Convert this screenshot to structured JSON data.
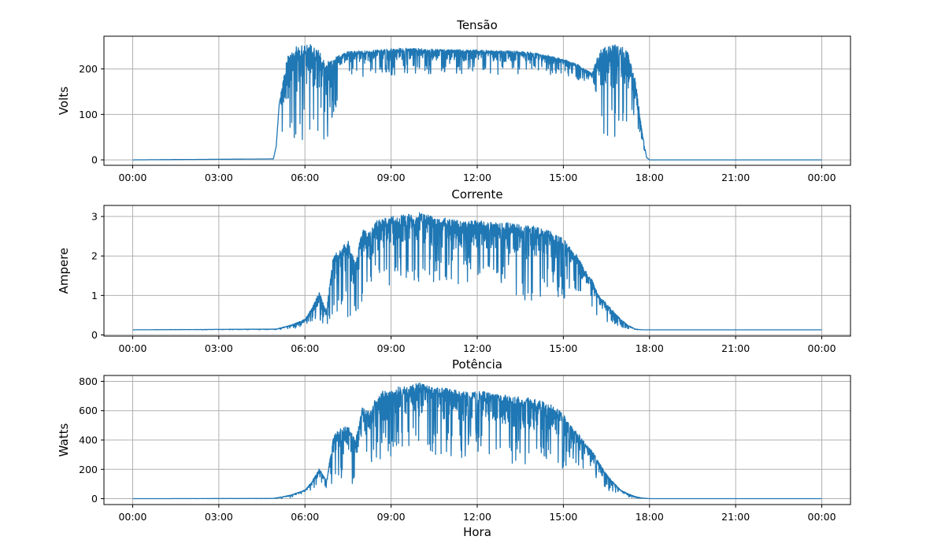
{
  "chart_data": [
    {
      "type": "line",
      "title": "Tensão",
      "ylabel": "Volts",
      "xlabel": "",
      "grid": true,
      "xlim_hours": [
        -1,
        25
      ],
      "ylim": [
        -12,
        272
      ],
      "x_ticks": [
        {
          "hour": 0,
          "label": "00:00"
        },
        {
          "hour": 3,
          "label": "03:00"
        },
        {
          "hour": 6,
          "label": "06:00"
        },
        {
          "hour": 9,
          "label": "09:00"
        },
        {
          "hour": 12,
          "label": "12:00"
        },
        {
          "hour": 15,
          "label": "15:00"
        },
        {
          "hour": 18,
          "label": "18:00"
        },
        {
          "hour": 21,
          "label": "21:00"
        },
        {
          "hour": 24,
          "label": "00:00"
        }
      ],
      "y_ticks": [
        0,
        100,
        200
      ],
      "color": "#1f77b4",
      "series": [
        {
          "x": [
            "00:00",
            "04:54",
            "05:00",
            "05:06",
            "05:12",
            "05:18",
            "05:24",
            "05:30",
            "05:45",
            "06:00",
            "06:15",
            "06:30",
            "06:45",
            "07:00",
            "07:30",
            "08:00",
            "08:30",
            "09:00",
            "09:30",
            "10:00",
            "10:30",
            "11:00",
            "11:30",
            "12:00",
            "12:30",
            "13:00",
            "13:30",
            "14:00",
            "14:30",
            "15:00",
            "15:30",
            "16:00",
            "16:15",
            "16:30",
            "16:45",
            "17:00",
            "17:15",
            "17:30",
            "17:45",
            "17:54",
            "18:00",
            "24:00"
          ],
          "y": [
            0,
            2,
            30,
            120,
            165,
            200,
            230,
            245,
            250,
            252,
            255,
            240,
            215,
            225,
            238,
            240,
            242,
            245,
            246,
            245,
            244,
            243,
            242,
            242,
            241,
            240,
            239,
            236,
            230,
            222,
            210,
            190,
            240,
            250,
            255,
            250,
            240,
            180,
            60,
            5,
            0,
            0
          ],
          "y_low": [
            0,
            2,
            30,
            120,
            40,
            20,
            15,
            25,
            30,
            35,
            30,
            40,
            30,
            100,
            190,
            175,
            190,
            185,
            190,
            190,
            185,
            195,
            185,
            195,
            190,
            185,
            190,
            200,
            185,
            190,
            170,
            180,
            70,
            50,
            40,
            40,
            60,
            60,
            30,
            5,
            0,
            0
          ]
        }
      ]
    },
    {
      "type": "line",
      "title": "Corrente",
      "ylabel": "Ampere",
      "xlabel": "",
      "grid": true,
      "xlim_hours": [
        -1,
        25
      ],
      "ylim": [
        -0.03,
        3.28
      ],
      "x_ticks": [
        {
          "hour": 0,
          "label": "00:00"
        },
        {
          "hour": 3,
          "label": "03:00"
        },
        {
          "hour": 6,
          "label": "06:00"
        },
        {
          "hour": 9,
          "label": "09:00"
        },
        {
          "hour": 12,
          "label": "12:00"
        },
        {
          "hour": 15,
          "label": "15:00"
        },
        {
          "hour": 18,
          "label": "18:00"
        },
        {
          "hour": 21,
          "label": "21:00"
        },
        {
          "hour": 24,
          "label": "00:00"
        }
      ],
      "y_ticks": [
        0,
        1,
        2,
        3
      ],
      "color": "#1f77b4",
      "series": [
        {
          "x": [
            "00:00",
            "05:00",
            "05:30",
            "06:00",
            "06:15",
            "06:30",
            "06:45",
            "07:00",
            "07:15",
            "07:30",
            "07:45",
            "08:00",
            "08:15",
            "08:30",
            "08:45",
            "09:00",
            "09:30",
            "10:00",
            "10:30",
            "11:00",
            "11:30",
            "12:00",
            "12:30",
            "13:00",
            "13:30",
            "14:00",
            "14:30",
            "15:00",
            "15:15",
            "15:30",
            "15:45",
            "16:00",
            "16:15",
            "16:30",
            "16:45",
            "17:00",
            "17:15",
            "17:30",
            "17:45",
            "18:00",
            "24:00"
          ],
          "y": [
            0.13,
            0.15,
            0.25,
            0.4,
            0.7,
            1.1,
            0.6,
            2.1,
            2.2,
            2.4,
            1.8,
            2.7,
            2.6,
            2.9,
            2.95,
            3.0,
            3.05,
            3.1,
            3.0,
            2.95,
            2.9,
            2.9,
            2.85,
            2.85,
            2.8,
            2.75,
            2.65,
            2.45,
            2.2,
            2.0,
            1.65,
            1.4,
            1.0,
            0.8,
            0.6,
            0.4,
            0.25,
            0.15,
            0.13,
            0.13,
            0.13
          ],
          "y_low": [
            0.13,
            0.13,
            0.15,
            0.2,
            0.3,
            0.35,
            0.25,
            0.5,
            0.4,
            0.3,
            0.5,
            0.7,
            1.0,
            1.2,
            1.3,
            1.25,
            1.4,
            1.3,
            1.35,
            1.2,
            1.3,
            1.4,
            1.3,
            1.2,
            0.8,
            0.9,
            1.1,
            0.8,
            1.2,
            1.0,
            0.9,
            0.7,
            0.4,
            0.3,
            0.25,
            0.2,
            0.15,
            0.13,
            0.13,
            0.13,
            0.13
          ]
        }
      ]
    },
    {
      "type": "line",
      "title": "Potência",
      "ylabel": "Watts",
      "xlabel": "Hora",
      "grid": true,
      "xlim_hours": [
        -1,
        25
      ],
      "ylim": [
        -40,
        840
      ],
      "x_ticks": [
        {
          "hour": 0,
          "label": "00:00"
        },
        {
          "hour": 3,
          "label": "03:00"
        },
        {
          "hour": 6,
          "label": "06:00"
        },
        {
          "hour": 9,
          "label": "09:00"
        },
        {
          "hour": 12,
          "label": "12:00"
        },
        {
          "hour": 15,
          "label": "15:00"
        },
        {
          "hour": 18,
          "label": "18:00"
        },
        {
          "hour": 21,
          "label": "21:00"
        },
        {
          "hour": 24,
          "label": "00:00"
        }
      ],
      "y_ticks": [
        0,
        200,
        400,
        600,
        800
      ],
      "color": "#1f77b4",
      "series": [
        {
          "x": [
            "00:00",
            "04:54",
            "05:30",
            "06:00",
            "06:15",
            "06:30",
            "06:45",
            "07:00",
            "07:15",
            "07:30",
            "07:45",
            "08:00",
            "08:15",
            "08:30",
            "08:45",
            "09:00",
            "09:30",
            "10:00",
            "10:30",
            "11:00",
            "11:30",
            "12:00",
            "12:30",
            "13:00",
            "13:30",
            "14:00",
            "14:30",
            "15:00",
            "15:15",
            "15:30",
            "15:45",
            "16:00",
            "16:15",
            "16:30",
            "16:45",
            "17:00",
            "17:15",
            "17:30",
            "17:45",
            "18:00",
            "24:00"
          ],
          "y": [
            0,
            2,
            25,
            60,
            120,
            210,
            120,
            440,
            480,
            500,
            400,
            620,
            600,
            700,
            740,
            760,
            770,
            790,
            760,
            750,
            730,
            740,
            720,
            710,
            700,
            680,
            650,
            590,
            500,
            450,
            380,
            330,
            250,
            170,
            110,
            60,
            35,
            15,
            5,
            0,
            0
          ],
          "y_low": [
            0,
            0,
            5,
            30,
            60,
            80,
            50,
            120,
            80,
            70,
            110,
            180,
            240,
            260,
            280,
            270,
            300,
            280,
            300,
            260,
            280,
            320,
            280,
            260,
            190,
            210,
            250,
            190,
            280,
            220,
            180,
            140,
            80,
            60,
            40,
            25,
            10,
            5,
            2,
            0,
            0
          ]
        }
      ]
    }
  ]
}
